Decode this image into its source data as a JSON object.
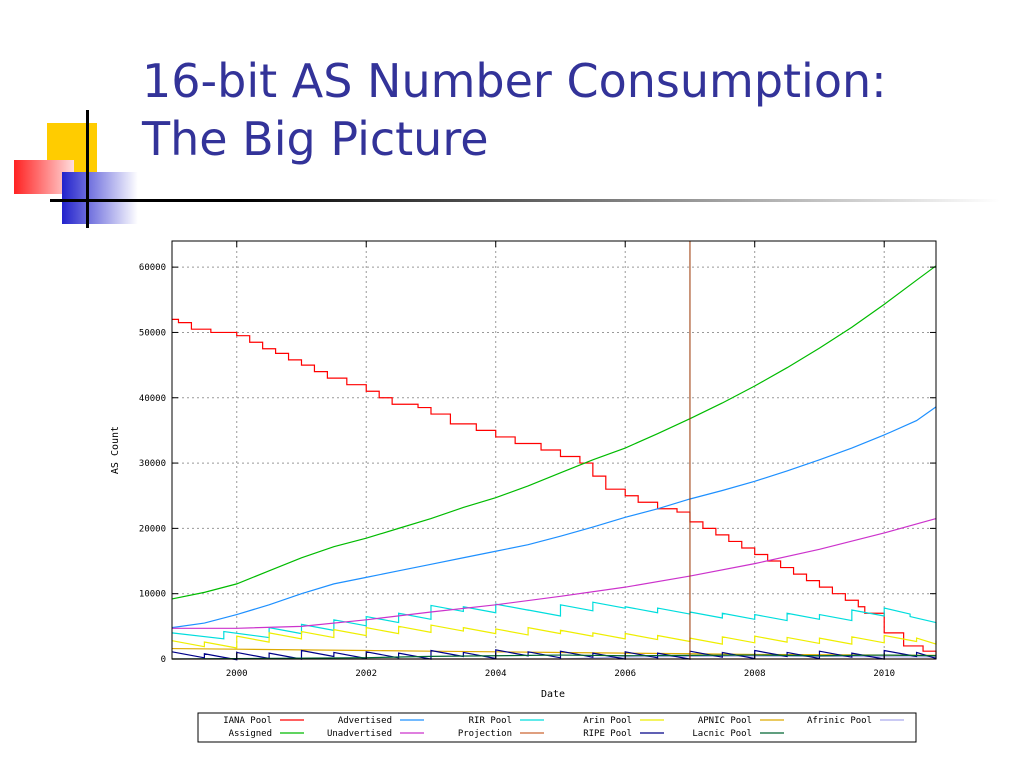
{
  "slide": {
    "title_line1": "16-bit AS Number Consumption:",
    "title_line2": "The Big Picture"
  },
  "colors": {
    "title": "#333399",
    "deco_yellow": "#ffcc00",
    "deco_red": "#ff3333",
    "deco_blue": "#3333cc"
  },
  "chart_data": {
    "type": "line",
    "xlabel": "Date",
    "ylabel": "AS Count",
    "xlim": [
      1999.0,
      2010.8
    ],
    "ylim": [
      0,
      64000
    ],
    "xticks": [
      "2000",
      "2002",
      "2004",
      "2006",
      "2008",
      "2010"
    ],
    "yticks": [
      "0",
      "10000",
      "20000",
      "30000",
      "40000",
      "50000",
      "60000"
    ],
    "grid": true,
    "legend_position": "bottom",
    "projection_marker_x": 2007.0,
    "series": [
      {
        "name": "IANA Pool",
        "color": "#ff0000",
        "step": true,
        "x": [
          1999.0,
          1999.1,
          1999.3,
          1999.6,
          2000.0,
          2000.2,
          2000.4,
          2000.6,
          2000.8,
          2001.0,
          2001.2,
          2001.4,
          2001.7,
          2002.0,
          2002.2,
          2002.4,
          2002.8,
          2003.0,
          2003.3,
          2003.7,
          2004.0,
          2004.3,
          2004.7,
          2005.0,
          2005.3,
          2005.5,
          2005.7,
          2006.0,
          2006.2,
          2006.5,
          2006.8,
          2007.0,
          2007.2,
          2007.4,
          2007.6,
          2007.8,
          2008.0,
          2008.2,
          2008.4,
          2008.6,
          2008.8,
          2009.0,
          2009.2,
          2009.4,
          2009.6,
          2009.7,
          2010.0,
          2010.3,
          2010.6,
          2010.8
        ],
        "y": [
          52000,
          51500,
          50500,
          50000,
          49500,
          48500,
          47500,
          46800,
          45800,
          45000,
          44000,
          43000,
          42000,
          41000,
          40000,
          39000,
          38500,
          37500,
          36000,
          35000,
          34000,
          33000,
          32000,
          31000,
          30000,
          28000,
          26000,
          25000,
          24000,
          23000,
          22500,
          21000,
          20000,
          19000,
          18000,
          17000,
          16000,
          15000,
          14000,
          13000,
          12000,
          11000,
          10000,
          9000,
          8000,
          7000,
          4000,
          2000,
          1200,
          800
        ]
      },
      {
        "name": "Advertised",
        "color": "#1e90ff",
        "x": [
          1999.0,
          1999.5,
          2000.0,
          2000.5,
          2001.0,
          2001.5,
          2002.0,
          2002.5,
          2003.0,
          2003.5,
          2004.0,
          2004.5,
          2005.0,
          2005.5,
          2006.0,
          2006.5,
          2007.0,
          2007.5,
          2008.0,
          2008.5,
          2009.0,
          2009.5,
          2010.0,
          2010.5,
          2010.8
        ],
        "y": [
          4800,
          5500,
          6800,
          8300,
          10000,
          11500,
          12500,
          13500,
          14500,
          15500,
          16500,
          17500,
          18800,
          20200,
          21700,
          23000,
          24500,
          25800,
          27200,
          28800,
          30500,
          32300,
          34300,
          36500,
          38600
        ]
      },
      {
        "name": "RIR Pool",
        "color": "#00dddd",
        "sawtooth": true,
        "x": [
          1999.0,
          1999.8,
          2000.5,
          2001.0,
          2001.5,
          2002.0,
          2002.5,
          2003.0,
          2003.5,
          2004.0,
          2004.5,
          2005.0,
          2005.5,
          2006.0,
          2006.5,
          2007.0,
          2007.5,
          2008.0,
          2008.5,
          2009.0,
          2009.5,
          2010.0,
          2010.4,
          2010.8
        ],
        "y": [
          4000,
          4200,
          4800,
          5300,
          6000,
          6500,
          7000,
          8200,
          8000,
          8400,
          7500,
          8300,
          8700,
          8000,
          7800,
          7200,
          7000,
          6800,
          7000,
          6800,
          7500,
          7800,
          6500,
          4500
        ]
      },
      {
        "name": "Arin Pool",
        "color": "#eeee00",
        "sawtooth": true,
        "x": [
          1999.0,
          1999.5,
          2000.0,
          2000.5,
          2001.0,
          2001.5,
          2002.0,
          2002.5,
          2003.0,
          2003.5,
          2004.0,
          2004.5,
          2005.0,
          2005.5,
          2006.0,
          2006.5,
          2007.0,
          2007.5,
          2008.0,
          2008.5,
          2009.0,
          2009.5,
          2010.0,
          2010.5,
          2010.8
        ],
        "y": [
          2800,
          2600,
          3500,
          4000,
          4200,
          4500,
          4800,
          5000,
          5200,
          4800,
          4600,
          4800,
          4400,
          4000,
          3900,
          3600,
          3200,
          3400,
          3500,
          3300,
          3200,
          3400,
          3600,
          3200,
          2800
        ]
      },
      {
        "name": "APNIC Pool",
        "color": "#ddaa00",
        "x": [
          1999.0,
          2000.0,
          2001.0,
          2002.0,
          2003.0,
          2004.0,
          2005.0,
          2006.0,
          2007.0,
          2008.0,
          2009.0,
          2010.0,
          2010.8
        ],
        "y": [
          1600,
          1500,
          1400,
          1300,
          1200,
          1100,
          1000,
          900,
          800,
          700,
          650,
          600,
          550
        ]
      },
      {
        "name": "Afrinic Pool",
        "color": "#aaaaee",
        "x": [
          1999.0,
          2005.0,
          2006.0,
          2007.0,
          2008.0,
          2009.0,
          2010.0,
          2010.8
        ],
        "y": [
          0,
          0,
          300,
          400,
          450,
          400,
          350,
          300
        ]
      },
      {
        "name": "Assigned",
        "color": "#00bb00",
        "x": [
          1999.0,
          1999.5,
          2000.0,
          2000.5,
          2001.0,
          2001.5,
          2002.0,
          2002.5,
          2003.0,
          2003.5,
          2004.0,
          2004.5,
          2005.0,
          2005.5,
          2006.0,
          2006.5,
          2007.0,
          2007.5,
          2008.0,
          2008.5,
          2009.0,
          2009.5,
          2010.0,
          2010.5,
          2010.8
        ],
        "y": [
          9200,
          10200,
          11500,
          13500,
          15500,
          17200,
          18500,
          20000,
          21500,
          23200,
          24700,
          26500,
          28500,
          30500,
          32300,
          34500,
          36800,
          39200,
          41800,
          44600,
          47600,
          50800,
          54300,
          58000,
          60200
        ]
      },
      {
        "name": "Unadvertised",
        "color": "#cc33cc",
        "x": [
          1999.0,
          2000.0,
          2001.0,
          2002.0,
          2003.0,
          2004.0,
          2005.0,
          2006.0,
          2007.0,
          2008.0,
          2009.0,
          2010.0,
          2010.8
        ],
        "y": [
          4700,
          4700,
          5000,
          6000,
          7200,
          8300,
          9600,
          11000,
          12700,
          14600,
          16800,
          19300,
          21500
        ]
      },
      {
        "name": "Projection",
        "color": "#cc6633",
        "x": [
          1999.0,
          2010.8
        ],
        "y": [
          0,
          0
        ]
      },
      {
        "name": "RIPE Pool",
        "color": "#000088",
        "sawtooth": true,
        "x": [
          1999.0,
          1999.5,
          2000.0,
          2000.5,
          2001.0,
          2001.5,
          2002.0,
          2002.5,
          2003.0,
          2003.5,
          2004.0,
          2004.5,
          2005.0,
          2005.5,
          2006.0,
          2006.5,
          2007.0,
          2007.5,
          2008.0,
          2008.5,
          2009.0,
          2009.5,
          2010.0,
          2010.5,
          2010.8
        ],
        "y": [
          1100,
          800,
          1000,
          900,
          1300,
          1000,
          1100,
          900,
          1300,
          1000,
          1400,
          1100,
          1200,
          900,
          1100,
          900,
          1200,
          1000,
          1300,
          1000,
          1200,
          900,
          1300,
          1000,
          800
        ]
      },
      {
        "name": "Lacnic Pool",
        "color": "#006633",
        "x": [
          1999.0,
          2002.0,
          2003.0,
          2004.0,
          2005.0,
          2006.0,
          2007.0,
          2008.0,
          2009.0,
          2010.0,
          2010.8
        ],
        "y": [
          0,
          200,
          400,
          500,
          600,
          500,
          550,
          600,
          500,
          600,
          500
        ]
      }
    ]
  }
}
